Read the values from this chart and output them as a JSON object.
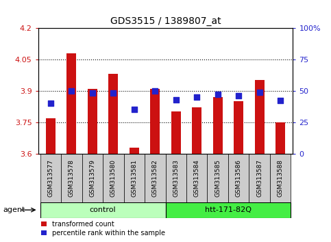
{
  "title": "GDS3515 / 1389807_at",
  "samples": [
    "GSM313577",
    "GSM313578",
    "GSM313579",
    "GSM313580",
    "GSM313581",
    "GSM313582",
    "GSM313583",
    "GSM313584",
    "GSM313585",
    "GSM313586",
    "GSM313587",
    "GSM313588"
  ],
  "transformed_count": [
    3.77,
    4.08,
    3.91,
    3.98,
    3.63,
    3.91,
    3.8,
    3.82,
    3.87,
    3.85,
    3.95,
    3.75
  ],
  "percentile_rank": [
    40,
    50,
    48,
    48,
    35,
    50,
    43,
    45,
    47,
    46,
    49,
    42
  ],
  "ylim_left": [
    3.6,
    4.2
  ],
  "ylim_right": [
    0,
    100
  ],
  "yticks_left": [
    3.6,
    3.75,
    3.9,
    4.05,
    4.2
  ],
  "yticks_right": [
    0,
    25,
    50,
    75,
    100
  ],
  "grid_values": [
    3.75,
    3.9,
    4.05
  ],
  "bar_color": "#cc1111",
  "dot_color": "#2222cc",
  "bar_width": 0.45,
  "dot_size": 30,
  "groups": [
    {
      "label": "control",
      "start": 0,
      "end": 5,
      "color": "#bbffbb"
    },
    {
      "label": "htt-171-82Q",
      "start": 6,
      "end": 11,
      "color": "#44ee44"
    }
  ],
  "agent_label": "agent",
  "legend_items": [
    {
      "label": "transformed count",
      "color": "#cc1111"
    },
    {
      "label": "percentile rank within the sample",
      "color": "#2222cc"
    }
  ],
  "tick_color_left": "#cc1111",
  "tick_color_right": "#2222cc",
  "background_plot": "#ffffff",
  "ticklabel_bg": "#cccccc",
  "border_color": "#000000"
}
